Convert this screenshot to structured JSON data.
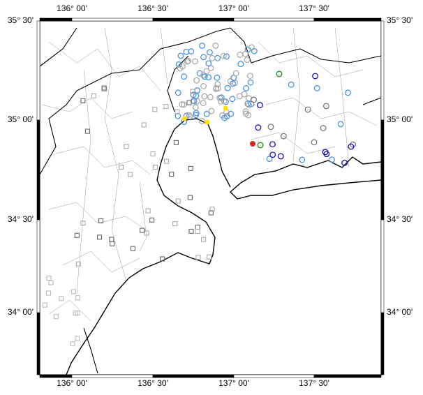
{
  "map": {
    "top_labels": [
      "136° 00'",
      "136° 30'",
      "137° 00'",
      "137° 30'"
    ],
    "bottom_labels": [
      "136° 00'",
      "136° 30'",
      "137° 00'",
      "137° 30'"
    ],
    "left_labels": [
      "35° 30'",
      "35° 00'",
      "34° 30'",
      "34° 00'"
    ],
    "right_labels": [
      "35° 30'",
      "35° 00'",
      "34° 30'",
      "34° 00'"
    ]
  }
}
